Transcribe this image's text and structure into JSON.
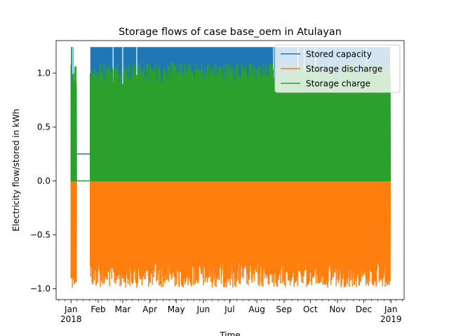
{
  "chart_data": {
    "type": "line",
    "title": "Storage flows of case base_oem in Atulayan",
    "xlabel": "Time",
    "ylabel": "Electricity flow/stored in kWh",
    "xlim": [
      "2017-12-15",
      "2019-01-16"
    ],
    "ylim": [
      -1.1,
      1.3
    ],
    "x_ticks": [
      {
        "date": "2018-01-01",
        "label": "Jan",
        "year": "2018"
      },
      {
        "date": "2018-02-01",
        "label": "Feb"
      },
      {
        "date": "2018-03-01",
        "label": "Mar"
      },
      {
        "date": "2018-04-01",
        "label": "Apr"
      },
      {
        "date": "2018-05-01",
        "label": "May"
      },
      {
        "date": "2018-06-01",
        "label": "Jun"
      },
      {
        "date": "2018-07-01",
        "label": "Jul"
      },
      {
        "date": "2018-08-01",
        "label": "Aug"
      },
      {
        "date": "2018-09-01",
        "label": "Sep"
      },
      {
        "date": "2018-10-01",
        "label": "Oct"
      },
      {
        "date": "2018-11-01",
        "label": "Nov"
      },
      {
        "date": "2018-12-01",
        "label": "Dec"
      },
      {
        "date": "2019-01-01",
        "label": "Jan",
        "year": "2019"
      }
    ],
    "y_ticks": [
      {
        "value": -1.0,
        "label": "−1.0"
      },
      {
        "value": -0.5,
        "label": "−0.5"
      },
      {
        "value": 0.0,
        "label": "0.0"
      },
      {
        "value": 0.5,
        "label": "0.5"
      },
      {
        "value": 1.0,
        "label": "1.0"
      }
    ],
    "legend_position": "top-right",
    "grid": false,
    "series": [
      {
        "name": "Stored capacity",
        "color": "#1f77b4",
        "idle_level": 0.25,
        "max": 1.24,
        "typical_min": 0.25,
        "blocks": [
          {
            "start": "2018-01-01",
            "end": "2018-01-04"
          },
          {
            "start": "2018-01-23",
            "end": "2018-12-31"
          }
        ],
        "dips": [
          {
            "date": "2018-01-03",
            "value": 0.75
          },
          {
            "date": "2018-01-05",
            "value": 0.8
          },
          {
            "date": "2018-02-18",
            "value": 0.7
          },
          {
            "date": "2018-03-01",
            "value": 0.75
          },
          {
            "date": "2018-03-17",
            "value": 0.82
          },
          {
            "date": "2018-08-20",
            "value": 0.6
          },
          {
            "date": "2018-09-17",
            "value": 0.55
          },
          {
            "date": "2018-09-24",
            "value": 0.75
          },
          {
            "date": "2018-10-07",
            "value": 0.65
          },
          {
            "date": "2018-12-04",
            "value": 0.25
          }
        ]
      },
      {
        "name": "Storage discharge",
        "color": "#ff7f0e",
        "baseline": 0.0,
        "min": -0.99,
        "blocks": [
          {
            "start": "2018-01-01",
            "end": "2018-01-07"
          },
          {
            "start": "2018-01-23",
            "end": "2018-12-31"
          }
        ]
      },
      {
        "name": "Storage charge",
        "color": "#2ca02c",
        "baseline": 0.0,
        "max": 1.1,
        "blocks": [
          {
            "start": "2018-01-01",
            "end": "2018-01-07"
          },
          {
            "start": "2018-01-23",
            "end": "2018-12-31"
          }
        ]
      }
    ]
  }
}
